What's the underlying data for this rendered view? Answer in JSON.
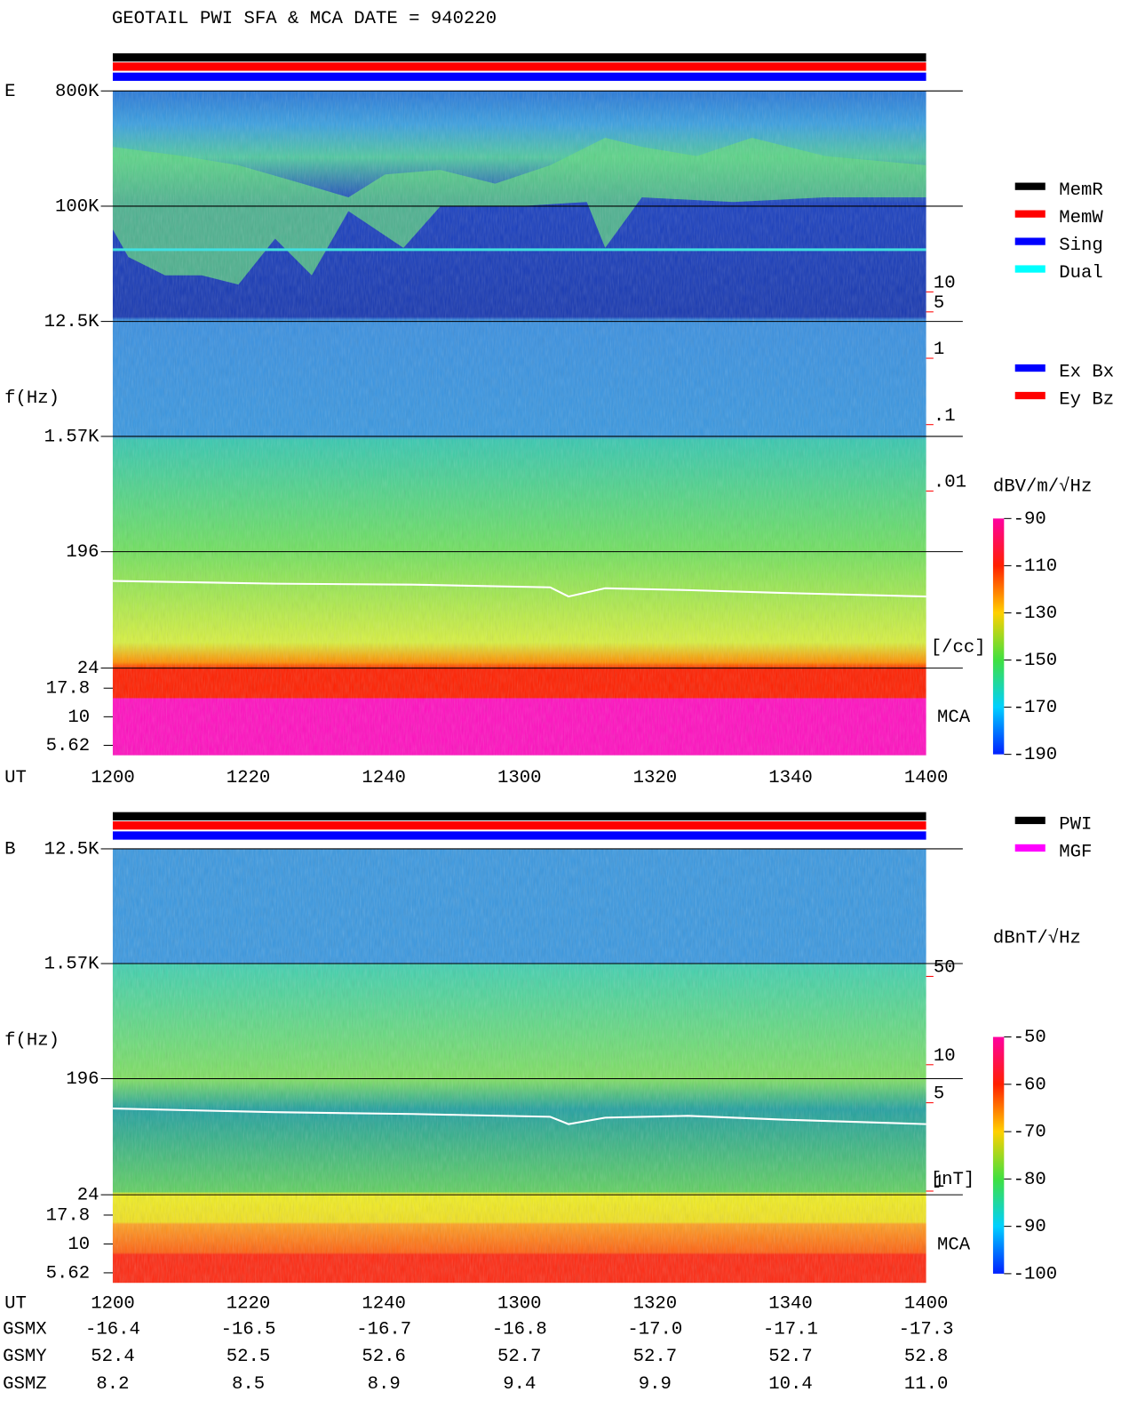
{
  "title": "GEOTAIL  PWI SFA & MCA   DATE = 940220",
  "chart_data": [
    {
      "type": "spectrogram",
      "panel_label": "E",
      "y_label": "f(Hz)",
      "x_label": "UT",
      "log_y": true,
      "ylim": [
        24,
        800000
      ],
      "yticks": [
        {
          "value": 800000,
          "label": "800K"
        },
        {
          "value": 100000,
          "label": "100K"
        },
        {
          "value": 12500,
          "label": "12.5K"
        },
        {
          "value": 1570,
          "label": "1.57K"
        },
        196,
        24
      ],
      "mca_label": "MCA",
      "mca_ylim": [
        4.6,
        26.7
      ],
      "mca_yticks": [
        17.8,
        10,
        5.62
      ],
      "xticks": [
        "1200",
        "1220",
        "1240",
        "1300",
        "1320",
        "1340",
        "1400"
      ],
      "y2_label": "[/cc]",
      "y2_color": "#ff0000",
      "y2lim": [
        0.01,
        10
      ],
      "y2ticks": [
        10,
        5,
        1,
        {
          "value": 0.1,
          "label": ".1"
        },
        {
          "value": 0.01,
          "label": ".01"
        }
      ],
      "colorbar": {
        "label": "dBV/m/√Hz",
        "lim": [
          -190,
          -90
        ],
        "ticks": [
          -90,
          -110,
          -130,
          -150,
          -170,
          -190
        ]
      },
      "legend": [
        {
          "name": "MemR",
          "color": "#000000"
        },
        {
          "name": "MemW",
          "color": "#ff0000"
        },
        {
          "name": "Sing",
          "color": "#0000ff"
        },
        {
          "name": "Dual",
          "color": "#00ffff"
        }
      ],
      "legend2": [
        {
          "name": "Ex Bx",
          "color": "#0000ff"
        },
        {
          "name": "Ey Bz",
          "color": "#ff0000"
        }
      ]
    },
    {
      "type": "spectrogram",
      "panel_label": "B",
      "y_label": "f(Hz)",
      "x_label": "UT",
      "log_y": true,
      "ylim": [
        24,
        12500
      ],
      "yticks": [
        {
          "value": 12500,
          "label": "12.5K"
        },
        {
          "value": 1570,
          "label": "1.57K"
        },
        196,
        24
      ],
      "mca_label": "MCA",
      "mca_ylim": [
        4.6,
        26.7
      ],
      "mca_yticks": [
        17.8,
        10,
        5.62
      ],
      "xticks": [
        "1200",
        "1220",
        "1240",
        "1300",
        "1320",
        "1340",
        "1400"
      ],
      "y2_label": "[nT]",
      "y2_color": "#ff0000",
      "y2lim": [
        1,
        50
      ],
      "y2ticks": [
        50,
        10,
        5,
        1
      ],
      "colorbar": {
        "label": "dBnT/√Hz",
        "lim": [
          -100,
          -50
        ],
        "ticks": [
          -50,
          -60,
          -70,
          -80,
          -90,
          -100
        ]
      },
      "legend": [
        {
          "name": "PWI",
          "color": "#000000"
        },
        {
          "name": "MGF",
          "color": "#ff00ff"
        }
      ]
    }
  ],
  "orbit": {
    "rows": [
      {
        "label": "GSMX",
        "values": [
          "-16.4",
          "-16.5",
          "-16.7",
          "-16.8",
          "-17.0",
          "-17.1",
          "-17.3"
        ]
      },
      {
        "label": "GSMY",
        "values": [
          "52.4",
          "52.5",
          "52.6",
          "52.7",
          "52.7",
          "52.7",
          "52.8"
        ]
      },
      {
        "label": "GSMZ",
        "values": [
          "8.2",
          "8.5",
          "8.9",
          "9.4",
          "9.9",
          "10.4",
          "11.0"
        ]
      }
    ]
  }
}
